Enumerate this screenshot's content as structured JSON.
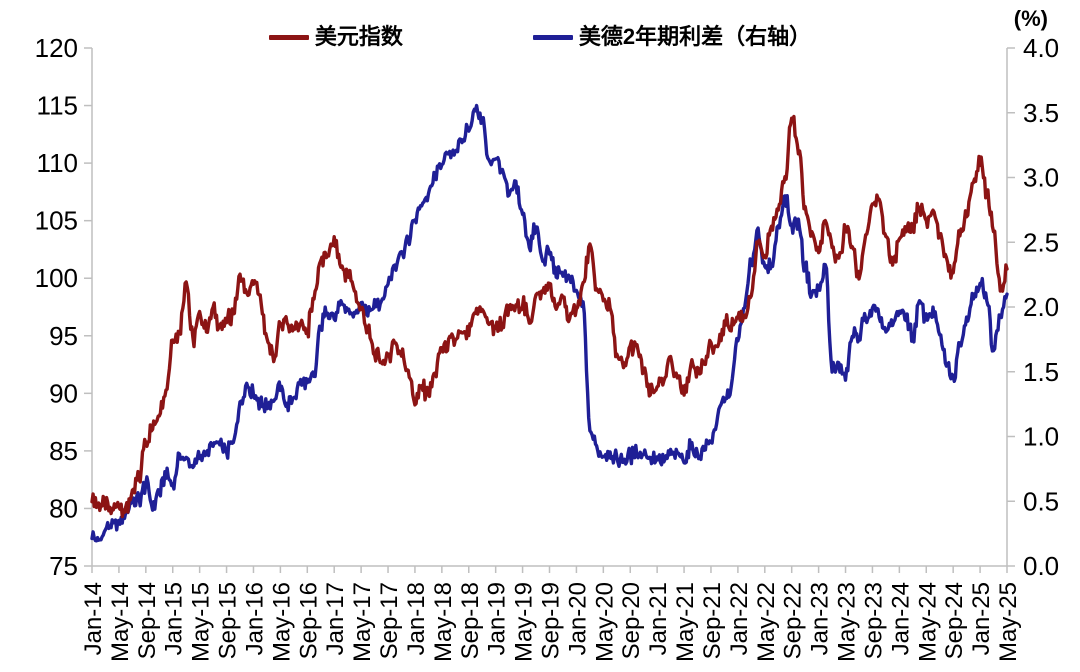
{
  "chart_data": {
    "type": "line",
    "title": "",
    "unit_label": "(%)",
    "grid": "off",
    "legend_position": "top-center",
    "legend": [
      {
        "label": "美元指数",
        "color": "#8c1414",
        "axis": "left"
      },
      {
        "label": "美德2年期利差（右轴）",
        "color": "#1f1f96",
        "axis": "right"
      }
    ],
    "left_axis": {
      "min": 75,
      "max": 120,
      "step": 5,
      "tick_labels": [
        "120",
        "115",
        "110",
        "105",
        "100",
        "95",
        "90",
        "85",
        "80",
        "75"
      ]
    },
    "right_axis": {
      "min": 0.0,
      "max": 4.0,
      "step": 0.5,
      "tick_labels": [
        "4.0",
        "3.5",
        "3.0",
        "2.5",
        "2.0",
        "1.5",
        "1.0",
        "0.5",
        "0.0"
      ]
    },
    "x_axis": {
      "start_month": "Jan-14",
      "end_month": "May-25",
      "tick_every_months": 4,
      "tick_labels": [
        "Jan-14",
        "May-14",
        "Sep-14",
        "Jan-15",
        "May-15",
        "Sep-15",
        "Jan-16",
        "May-16",
        "Sep-16",
        "Jan-17",
        "May-17",
        "Sep-17",
        "Jan-18",
        "May-18",
        "Sep-18",
        "Jan-19",
        "May-19",
        "Sep-19",
        "Jan-20",
        "May-20",
        "Sep-20",
        "Jan-21",
        "May-21",
        "Sep-21",
        "Jan-22",
        "May-22",
        "Sep-22",
        "Jan-23",
        "May-23",
        "Sep-23",
        "Jan-24",
        "May-24",
        "Sep-24",
        "Jan-25",
        "May-25"
      ]
    },
    "series": [
      {
        "name": "美元指数",
        "axis": "left",
        "color": "#8c1414",
        "monthly_values": [
          81.0,
          80.4,
          80.2,
          79.8,
          80.4,
          79.8,
          81.4,
          82.7,
          85.9,
          86.9,
          88.3,
          90.3,
          94.8,
          95.3,
          99.8,
          94.6,
          96.9,
          95.5,
          97.3,
          95.8,
          96.3,
          96.9,
          100.2,
          98.7,
          99.6,
          98.2,
          94.6,
          93.1,
          95.9,
          96.1,
          95.5,
          96.0,
          95.5,
          98.4,
          101.5,
          102.2,
          103.2,
          101.1,
          100.4,
          99.0,
          97.3,
          95.6,
          93.4,
          92.7,
          93.1,
          94.5,
          93.3,
          92.1,
          89.1,
          90.6,
          90.0,
          91.8,
          94.0,
          94.5,
          94.6,
          95.1,
          95.1,
          97.1,
          97.3,
          96.2,
          95.6,
          96.1,
          97.3,
          97.5,
          97.8,
          96.1,
          98.5,
          98.9,
          99.4,
          97.3,
          98.3,
          96.4,
          97.4,
          99.5,
          102.7,
          99.0,
          98.3,
          97.4,
          93.3,
          92.1,
          93.9,
          94.0,
          91.9,
          89.9,
          90.6,
          90.9,
          93.2,
          91.3,
          90.0,
          92.4,
          92.2,
          92.6,
          94.2,
          94.1,
          96.0,
          95.7,
          96.5,
          96.7,
          98.3,
          103.0,
          101.8,
          104.7,
          105.9,
          108.8,
          114.1,
          110.8,
          106.0,
          103.8,
          102.1,
          104.9,
          102.5,
          101.7,
          104.3,
          102.9,
          100.0,
          103.6,
          106.2,
          106.7,
          103.5,
          101.3,
          103.3,
          104.2,
          104.5,
          106.2,
          104.7,
          105.9,
          104.1,
          101.7,
          100.4,
          104.0,
          105.7,
          108.5,
          109.9,
          107.6,
          104.2,
          98.9,
          100.8
        ]
      },
      {
        "name": "美德2年期利差（右轴）",
        "axis": "right",
        "color": "#1f1f96",
        "monthly_values": [
          0.22,
          0.2,
          0.28,
          0.33,
          0.33,
          0.42,
          0.5,
          0.52,
          0.63,
          0.45,
          0.57,
          0.7,
          0.63,
          0.85,
          0.82,
          0.78,
          0.83,
          0.88,
          0.93,
          0.92,
          0.88,
          0.95,
          1.25,
          1.4,
          1.33,
          1.27,
          1.22,
          1.28,
          1.38,
          1.25,
          1.3,
          1.42,
          1.4,
          1.46,
          1.85,
          1.98,
          1.92,
          2.02,
          1.98,
          1.95,
          2.02,
          1.95,
          2.05,
          2.03,
          2.18,
          2.32,
          2.42,
          2.52,
          2.68,
          2.8,
          2.87,
          3.02,
          3.12,
          3.18,
          3.22,
          3.28,
          3.38,
          3.52,
          3.45,
          3.12,
          3.15,
          3.05,
          2.85,
          2.95,
          2.72,
          2.48,
          2.62,
          2.35,
          2.42,
          2.25,
          2.25,
          2.2,
          2.12,
          2.02,
          1.05,
          0.92,
          0.85,
          0.88,
          0.82,
          0.82,
          0.85,
          0.87,
          0.88,
          0.82,
          0.83,
          0.8,
          0.88,
          0.85,
          0.82,
          0.92,
          0.86,
          0.9,
          0.97,
          1.15,
          1.28,
          1.38,
          1.75,
          2.0,
          2.35,
          2.6,
          2.3,
          2.32,
          2.62,
          2.85,
          2.62,
          2.66,
          2.3,
          2.1,
          2.12,
          2.32,
          1.52,
          1.55,
          1.45,
          1.78,
          1.78,
          1.92,
          1.97,
          1.92,
          1.8,
          1.87,
          1.97,
          1.92,
          1.78,
          2.02,
          1.92,
          1.97,
          1.78,
          1.55,
          1.45,
          1.72,
          1.92,
          2.07,
          2.2,
          2.05,
          1.68,
          1.92,
          2.1
        ]
      }
    ]
  }
}
